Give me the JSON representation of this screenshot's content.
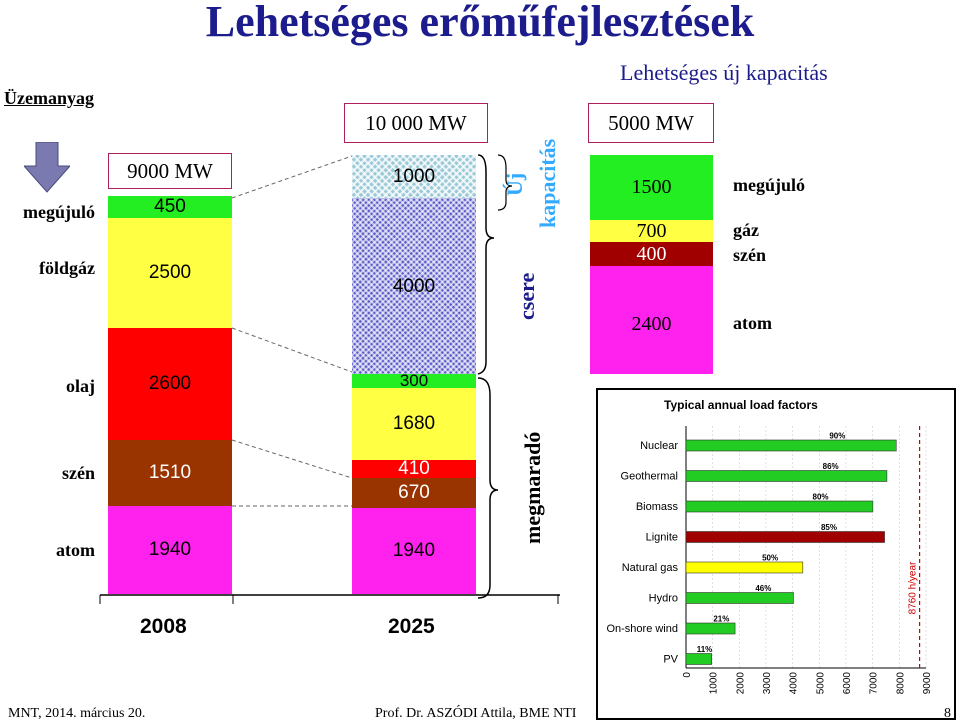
{
  "title": "Lehetséges erőműfejlesztések",
  "subtitle": "Lehetséges új kapacitás",
  "fuel_header": "Üzemanyag",
  "row_labels": {
    "megujulo": "megújuló",
    "foldgaz": "földgáz",
    "olaj": "olaj",
    "szen": "szén",
    "atom": "atom"
  },
  "boxes": {
    "total_2008": "9000 MW",
    "total_2025": "10 000 MW",
    "total_new": "5000 MW"
  },
  "brace_labels": {
    "uj_1": "Új",
    "uj_2": "kapacitás",
    "csere": "csere",
    "megmarado": "megmaradó"
  },
  "new_capacity_labels": {
    "megujulo": "megújuló",
    "gaz": "gáz",
    "szen": "szén",
    "atom": "atom"
  },
  "colors": {
    "renewable": "#22ee22",
    "gas": "#ffff44",
    "oil": "#ff0000",
    "coal": "#993300",
    "nuclear": "#ff22ee",
    "coal_dark": "#a00000",
    "title": "#1c1c8c",
    "accent": "#33aaff"
  },
  "chart_data": [
    {
      "type": "bar",
      "stacked": true,
      "categories": [
        "2008",
        "2025"
      ],
      "series": [
        {
          "values": [
            1940,
            1940
          ],
          "color": "#ff22ee"
        },
        {
          "values": [
            1510,
            670
          ],
          "color": "#993300"
        },
        {
          "values": [
            null,
            410
          ],
          "color": "#ff0000"
        },
        {
          "values": [
            2600,
            1680
          ],
          "color": "#ff0000"
        },
        {
          "values": [
            null,
            300
          ],
          "color": "#22ee22"
        },
        {
          "values": [
            2500,
            4000
          ],
          "color": "#ffff44"
        },
        {
          "values": [
            450,
            1000
          ],
          "color": "#22ee22"
        }
      ]
    },
    {
      "type": "bar",
      "stacked": true,
      "categories": [
        "5000 MW"
      ],
      "series": [
        {
          "name": "atom",
          "values": [
            2400
          ],
          "color": "#ff22ee"
        },
        {
          "name": "szén",
          "values": [
            400
          ],
          "color": "#a00000"
        },
        {
          "name": "gáz",
          "values": [
            700
          ],
          "color": "#ffff44"
        },
        {
          "name": "megújuló",
          "values": [
            1500
          ],
          "color": "#22ee22"
        }
      ]
    },
    {
      "type": "bar",
      "orientation": "horizontal",
      "title": "Typical annual load factors",
      "ylabel": "8760 h/year",
      "categories": [
        "Nuclear",
        "Geothermal",
        "Biomass",
        "Lignite",
        "Natural gas",
        "Hydro",
        "On-shore wind",
        "PV"
      ],
      "values": [
        7884,
        7534,
        7008,
        7446,
        4380,
        4030,
        1840,
        964
      ],
      "bar_labels": [
        "90%",
        "86%",
        "80%",
        "85%",
        "50%",
        "46%",
        "21%",
        "11%"
      ],
      "bar_colors": [
        "#22cc22",
        "#22cc22",
        "#22cc22",
        "#a00000",
        "#ffff00",
        "#22cc22",
        "#22cc22",
        "#22cc22"
      ],
      "xticks": [
        "0",
        "1000",
        "2000",
        "3000",
        "4000",
        "5000",
        "6000",
        "7000",
        "8000",
        "9000"
      ],
      "xlim": [
        0,
        9000
      ],
      "reference_line": 8760
    }
  ],
  "footer": {
    "left": "MNT, 2014. március 20.",
    "center": "Prof. Dr. ASZÓDI Attila, BME NTI",
    "page": "8"
  }
}
